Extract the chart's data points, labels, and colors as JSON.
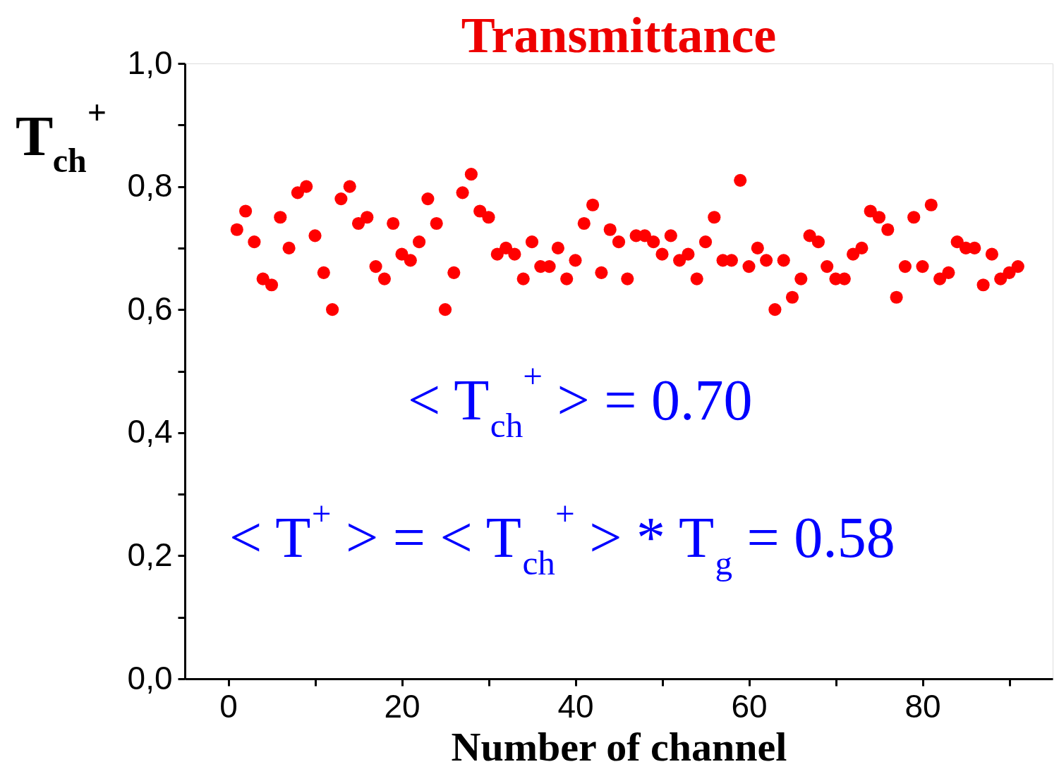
{
  "chart_data": {
    "type": "scatter",
    "title": "Transmittance",
    "xlabel": "Number of channel",
    "ylabel": "T$_{ch}$$^{+}$",
    "x": [
      1,
      2,
      3,
      4,
      5,
      6,
      7,
      8,
      9,
      10,
      11,
      12,
      13,
      14,
      15,
      16,
      17,
      18,
      19,
      20,
      21,
      22,
      23,
      24,
      25,
      26,
      27,
      28,
      29,
      30,
      31,
      32,
      33,
      34,
      35,
      36,
      37,
      38,
      39,
      40,
      41,
      42,
      43,
      44,
      45,
      46,
      47,
      48,
      49,
      50,
      51,
      52,
      53,
      54,
      55,
      56,
      57,
      58,
      59,
      60,
      61,
      62,
      63,
      64,
      65,
      66,
      67,
      68,
      69,
      70,
      71,
      72,
      73,
      74,
      75,
      76,
      77,
      78,
      79,
      80,
      81,
      82,
      83,
      84,
      85,
      86,
      87,
      88,
      89,
      90,
      91
    ],
    "series": [
      {
        "color": "#ff0000",
        "values": [
          0.73,
          0.76,
          0.71,
          0.65,
          0.64,
          0.75,
          0.7,
          0.79,
          0.8,
          0.72,
          0.66,
          0.6,
          0.78,
          0.8,
          0.74,
          0.75,
          0.67,
          0.65,
          0.74,
          0.69,
          0.68,
          0.71,
          0.78,
          0.74,
          0.6,
          0.66,
          0.79,
          0.82,
          0.76,
          0.75,
          0.69,
          0.7,
          0.69,
          0.65,
          0.71,
          0.67,
          0.67,
          0.7,
          0.65,
          0.68,
          0.74,
          0.77,
          0.66,
          0.73,
          0.71,
          0.65,
          0.72,
          0.72,
          0.71,
          0.69,
          0.72,
          0.68,
          0.69,
          0.65,
          0.71,
          0.75,
          0.68,
          0.68,
          0.81,
          0.67,
          0.7,
          0.68,
          0.6,
          0.68,
          0.62,
          0.65,
          0.72,
          0.71,
          0.67,
          0.65,
          0.65,
          0.69,
          0.7,
          0.76,
          0.75,
          0.73,
          0.62,
          0.67,
          0.75,
          0.67,
          0.77,
          0.65,
          0.66,
          0.71,
          0.7,
          0.7,
          0.64,
          0.69,
          0.65,
          0.66,
          0.67
        ]
      }
    ],
    "marker": "circle",
    "xlim": [
      -5,
      95
    ],
    "xticks": [
      0,
      {
        "value": 10,
        "label": null
      },
      20,
      {
        "value": 30,
        "label": null
      },
      40,
      {
        "value": 50,
        "label": null
      },
      60,
      {
        "value": 70,
        "label": null
      },
      80,
      {
        "value": 90,
        "label": null
      }
    ],
    "ylim": [
      0,
      1
    ],
    "yticks": [
      {
        "value": 0,
        "label": "0,0"
      },
      {
        "value": 0.1,
        "label": null
      },
      {
        "value": 0.2,
        "label": "0,2"
      },
      {
        "value": 0.3,
        "label": null
      },
      {
        "value": 0.4,
        "label": "0,4"
      },
      {
        "value": 0.5,
        "label": null
      },
      {
        "value": 0.6,
        "label": "0,6"
      },
      {
        "value": 0.7,
        "label": null
      },
      {
        "value": 0.8,
        "label": "0,8"
      },
      {
        "value": 0.9,
        "label": null
      },
      {
        "value": 1,
        "label": "1,0"
      }
    ],
    "annotations": [
      "< T$_{ch}$$^{+}$ > = 0.70",
      "< T$^{+}$ > = < T$_{ch}$$^{+}$ > * T$_{g}$ = 0.58"
    ],
    "grid": false
  }
}
